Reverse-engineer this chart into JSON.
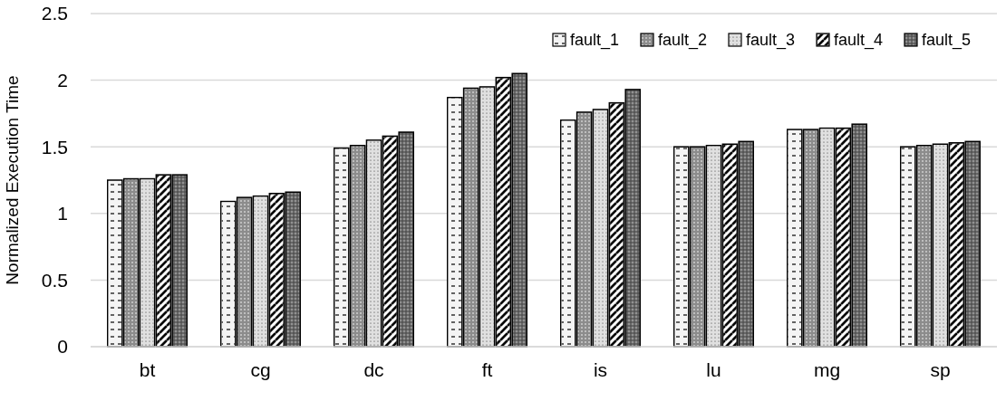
{
  "chart_data": {
    "type": "bar",
    "ylabel": "Normalized Execution Time",
    "categories": [
      "bt",
      "cg",
      "dc",
      "ft",
      "is",
      "lu",
      "mg",
      "sp"
    ],
    "series": [
      {
        "name": "fault_1",
        "color": "#f4f4f4",
        "values": [
          1.25,
          1.09,
          1.49,
          1.87,
          1.7,
          1.5,
          1.63,
          1.5
        ]
      },
      {
        "name": "fault_2",
        "color": "#8c8c8c",
        "values": [
          1.26,
          1.12,
          1.51,
          1.94,
          1.76,
          1.5,
          1.63,
          1.51
        ]
      },
      {
        "name": "fault_3",
        "color": "#e0e0e0",
        "values": [
          1.26,
          1.13,
          1.55,
          1.95,
          1.78,
          1.51,
          1.64,
          1.52
        ]
      },
      {
        "name": "fault_4",
        "color": "#707070",
        "values": [
          1.29,
          1.15,
          1.58,
          2.02,
          1.83,
          1.52,
          1.64,
          1.53
        ]
      },
      {
        "name": "fault_5",
        "color": "#555555",
        "values": [
          1.29,
          1.16,
          1.61,
          2.05,
          1.93,
          1.54,
          1.67,
          1.54
        ]
      }
    ],
    "ylim": [
      0,
      2.5
    ],
    "yticks": [
      0,
      0.5,
      1,
      1.5,
      2,
      2.5
    ],
    "grid": "y",
    "legend": "top right"
  }
}
